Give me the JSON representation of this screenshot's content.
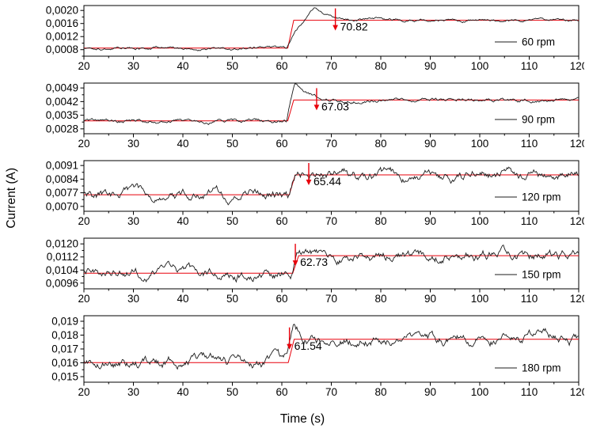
{
  "figure": {
    "xlabel": "Time (s)",
    "ylabel": "Current (A)",
    "colors": {
      "background": "#ffffff",
      "axis": "#000000",
      "trace": "#1c1c1c",
      "fit": "#e8000b",
      "annotation_text": "#000000"
    }
  },
  "chart_data": [
    {
      "type": "line",
      "legend": "60 rpm",
      "x": {
        "min": 20,
        "max": 120,
        "ticks": [
          20,
          30,
          40,
          50,
          60,
          70,
          80,
          90,
          100,
          110,
          120
        ],
        "minor_step": 5
      },
      "y": {
        "min": 0.0006,
        "max": 0.00215,
        "ticks": [
          0.0008,
          0.0012,
          0.0016,
          0.002
        ],
        "tick_labels": [
          "0,0008",
          "0,0012",
          "0,0016",
          "0,0020"
        ]
      },
      "signal": {
        "baseline": 0.00085,
        "step_time": 61,
        "peak": 0.00206,
        "peak_time": 66.5,
        "steady": 0.0017,
        "decay_tau": 3.5,
        "noise": 5e-05
      },
      "fit": {
        "baseline": 0.00085,
        "steady": 0.0017,
        "step_time": 61.2
      },
      "annotation": {
        "time": 70.82,
        "label": "70.82"
      }
    },
    {
      "type": "line",
      "legend": "90 rpm",
      "x": {
        "min": 20,
        "max": 120,
        "ticks": [
          20,
          30,
          40,
          50,
          60,
          70,
          80,
          90,
          100,
          110,
          120
        ],
        "minor_step": 5
      },
      "y": {
        "min": 0.00255,
        "max": 0.00515,
        "ticks": [
          0.0028,
          0.0035,
          0.0042,
          0.0049
        ],
        "tick_labels": [
          "0,0028",
          "0,0035",
          "0,0042",
          "0,0049"
        ]
      },
      "signal": {
        "baseline": 0.0032,
        "step_time": 61,
        "peak": 0.00505,
        "peak_time": 62.6,
        "steady": 0.00428,
        "decay_tau": 2.2,
        "noise": 0.00011
      },
      "fit": {
        "baseline": 0.00321,
        "steady": 0.00428,
        "step_time": 61.2
      },
      "annotation": {
        "time": 67.03,
        "label": "67.03"
      }
    },
    {
      "type": "line",
      "legend": "120 rpm",
      "x": {
        "min": 20,
        "max": 120,
        "ticks": [
          20,
          30,
          40,
          50,
          60,
          70,
          80,
          90,
          100,
          110,
          120
        ],
        "minor_step": 5
      },
      "y": {
        "min": 0.00675,
        "max": 0.00935,
        "ticks": [
          0.007,
          0.0077,
          0.0084,
          0.0091
        ],
        "tick_labels": [
          "0,0070",
          "0,0077",
          "0,0084",
          "0,0091"
        ]
      },
      "signal": {
        "baseline": 0.0076,
        "step_time": 61.3,
        "peak": 0.0089,
        "peak_time": 63.0,
        "steady": 0.00862,
        "decay_tau": 1.6,
        "noise": 0.0003
      },
      "fit": {
        "baseline": 0.0076,
        "steady": 0.00862,
        "step_time": 61.5
      },
      "annotation": {
        "time": 65.44,
        "label": "65.44"
      }
    },
    {
      "type": "line",
      "legend": "150 rpm",
      "x": {
        "min": 20,
        "max": 120,
        "ticks": [
          20,
          30,
          40,
          50,
          60,
          70,
          80,
          90,
          100,
          110,
          120
        ],
        "minor_step": 5
      },
      "y": {
        "min": 0.00925,
        "max": 0.01235,
        "ticks": [
          0.0096,
          0.0104,
          0.0112,
          0.012
        ],
        "tick_labels": [
          "0,0096",
          "0,0104",
          "0,0112",
          "0,0120"
        ]
      },
      "signal": {
        "baseline": 0.0102,
        "step_time": 62,
        "peak": 0.0117,
        "peak_time": 63.4,
        "steady": 0.01128,
        "decay_tau": 1.6,
        "noise": 0.00035
      },
      "fit": {
        "baseline": 0.01021,
        "steady": 0.01128,
        "step_time": 62.2
      },
      "annotation": {
        "time": 62.73,
        "label": "62.73"
      }
    },
    {
      "type": "line",
      "legend": "180 rpm",
      "x": {
        "min": 20,
        "max": 120,
        "ticks": [
          20,
          30,
          40,
          50,
          60,
          70,
          80,
          90,
          100,
          110,
          120
        ],
        "minor_step": 5
      },
      "y": {
        "min": 0.0146,
        "max": 0.0194,
        "ticks": [
          0.015,
          0.016,
          0.017,
          0.018,
          0.019
        ],
        "tick_labels": [
          "0,015",
          "0,016",
          "0,017",
          "0,018",
          "0,019"
        ]
      },
      "signal": {
        "baseline": 0.016,
        "step_time": 61,
        "peak": 0.01845,
        "peak_time": 62.5,
        "steady": 0.0177,
        "decay_tau": 1.8,
        "noise": 0.00045
      },
      "fit": {
        "baseline": 0.01602,
        "steady": 0.0177,
        "step_time": 61.3
      },
      "annotation": {
        "time": 61.54,
        "label": "61.54"
      }
    }
  ]
}
